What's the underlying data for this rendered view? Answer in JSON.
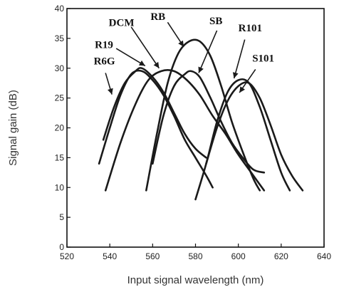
{
  "chart_data": {
    "type": "line",
    "xlabel": "Input signal wavelength (nm)",
    "ylabel": "Signal gain (dB)",
    "xlim": [
      520,
      640
    ],
    "ylim": [
      0,
      40
    ],
    "xticks": [
      "520",
      "540",
      "560",
      "580",
      "600",
      "620",
      "640"
    ],
    "yticks": [
      "0",
      "5",
      "10",
      "15",
      "20",
      "25",
      "30",
      "35",
      "40"
    ],
    "grid": false,
    "series": [
      {
        "name": "R6G",
        "x": [
          535,
          540,
          545,
          550,
          555,
          560,
          565,
          570,
          575,
          580,
          585,
          588
        ],
        "y": [
          14,
          20,
          25.5,
          29,
          29.5,
          28,
          25.5,
          22,
          18,
          15,
          12,
          10
        ]
      },
      {
        "name": "R19",
        "x": [
          537,
          542,
          547,
          552,
          555,
          560,
          565,
          570,
          575,
          580,
          585
        ],
        "y": [
          18,
          23.5,
          27.5,
          29.5,
          30,
          28.5,
          26,
          22.5,
          19,
          16.5,
          15
        ]
      },
      {
        "name": "DCM",
        "x": [
          538,
          545,
          552,
          558,
          564,
          570,
          576,
          582,
          588,
          594,
          600,
          606,
          612
        ],
        "y": [
          9.5,
          17.5,
          24,
          28,
          29.5,
          29.5,
          28,
          25.5,
          22,
          19,
          15.5,
          12.5,
          9.5
        ]
      },
      {
        "name": "RB",
        "x": [
          557,
          562,
          567,
          572,
          577,
          582,
          587,
          592,
          597,
          602,
          607,
          610
        ],
        "y": [
          9.5,
          19,
          27.5,
          32.5,
          34.5,
          34.5,
          32,
          27,
          21,
          16,
          11.5,
          9.5
        ]
      },
      {
        "name": "SB",
        "x": [
          560,
          565,
          570,
          575,
          578,
          582,
          587,
          592,
          597,
          602,
          607,
          612
        ],
        "y": [
          14,
          22,
          27,
          29,
          29.5,
          28.5,
          25,
          21,
          17.5,
          15,
          13,
          12.5
        ]
      },
      {
        "name": "R101",
        "x": [
          580,
          585,
          590,
          595,
          600,
          605,
          610,
          615,
          620,
          624
        ],
        "y": [
          8,
          14,
          21,
          26,
          28,
          27.5,
          23.5,
          18,
          12.5,
          9.5
        ]
      },
      {
        "name": "S101",
        "x": [
          585,
          590,
          595,
          600,
          605,
          610,
          615,
          620,
          625,
          630
        ],
        "y": [
          14,
          20,
          24.5,
          27,
          27.5,
          25,
          20.5,
          15.5,
          12,
          9.5
        ]
      }
    ],
    "labels": [
      "R6G",
      "R19",
      "DCM",
      "RB",
      "SB",
      "R101",
      "S101"
    ]
  }
}
